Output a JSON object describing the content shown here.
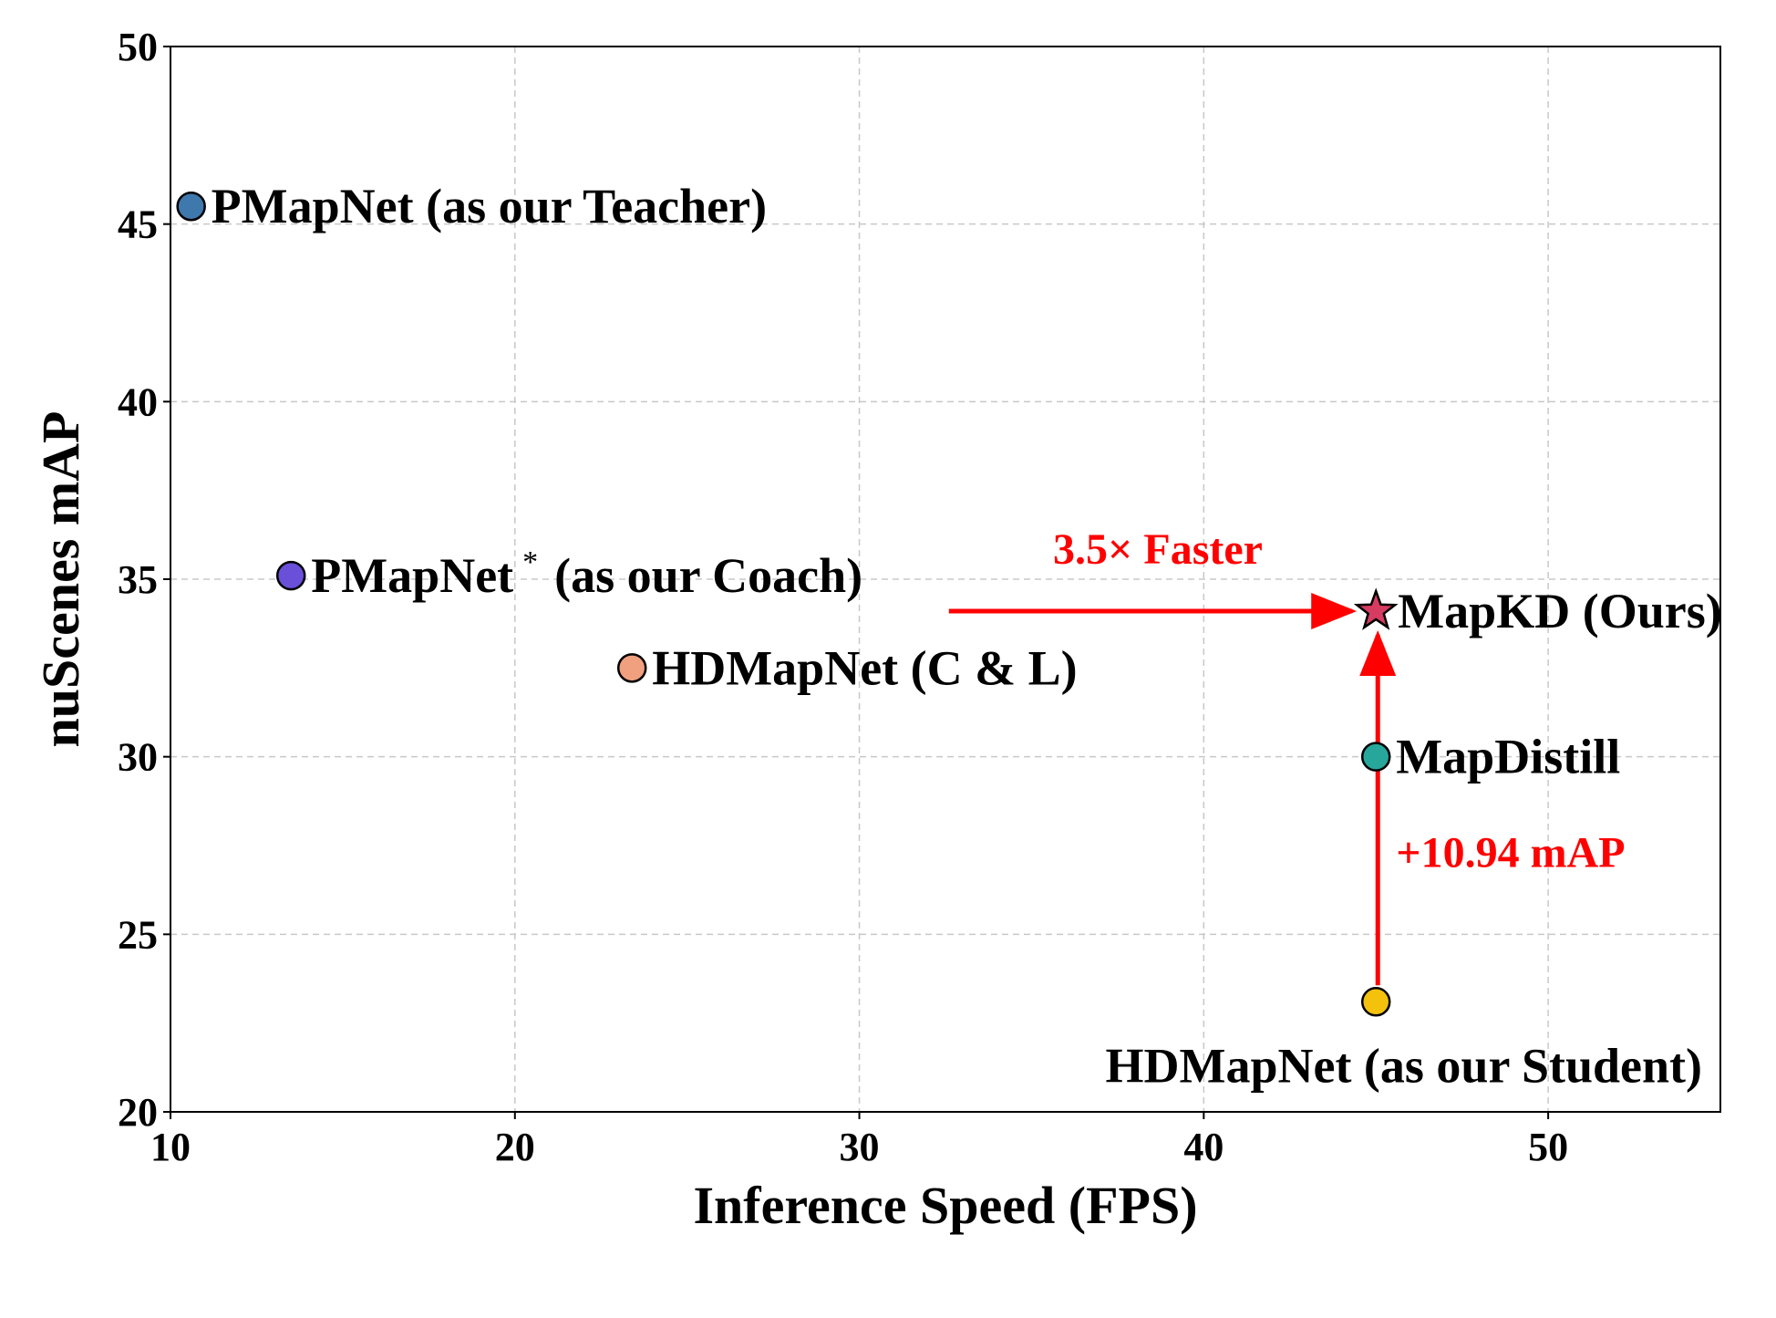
{
  "chart_data": {
    "type": "scatter",
    "title": "",
    "xlabel": "Inference Speed (FPS)",
    "ylabel": "nuScenes mAP",
    "xlim": [
      10,
      55
    ],
    "ylim": [
      20,
      50
    ],
    "xticks": [
      "10",
      "20",
      "30",
      "40",
      "50"
    ],
    "yticks": [
      "20",
      "25",
      "30",
      "35",
      "40",
      "45",
      "50"
    ],
    "grid": true,
    "points": [
      {
        "label": "PMapNet (as our Teacher)",
        "label_sup": "",
        "x": 10.6,
        "y": 45.5,
        "color": "#3f78ad",
        "marker": "circle"
      },
      {
        "label": "PMapNet",
        "label_sup": "*",
        "label_suffix": "(as our Coach)",
        "x": 13.5,
        "y": 35.1,
        "color": "#6a4fd8",
        "marker": "circle"
      },
      {
        "label": "HDMapNet (C & L)",
        "label_sup": "",
        "x": 23.4,
        "y": 32.5,
        "color": "#f0a07f",
        "marker": "circle"
      },
      {
        "label": "MapKD (Ours)",
        "label_sup": "",
        "x": 45.0,
        "y": 34.1,
        "color": "#d63c61",
        "marker": "star"
      },
      {
        "label": "MapDistill",
        "label_sup": "",
        "x": 45.0,
        "y": 30.0,
        "color": "#27a79b",
        "marker": "circle"
      },
      {
        "label": "HDMapNet (as our Student)",
        "label_sup": "",
        "x": 45.0,
        "y": 23.1,
        "color": "#f4c20d",
        "marker": "circle"
      }
    ],
    "annotations": [
      {
        "text": "3.5× Faster",
        "color": "#ff0000"
      },
      {
        "text": "+10.94 mAP",
        "color": "#ff0000"
      }
    ]
  }
}
